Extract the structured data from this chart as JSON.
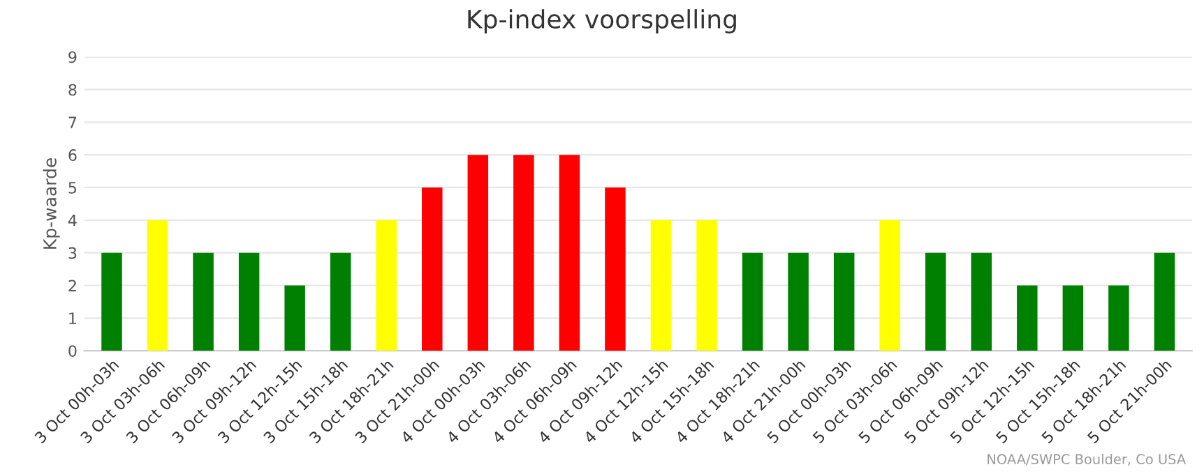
{
  "chart_data": {
    "type": "bar",
    "title": "Kp-index voorspelling",
    "ylabel": "Kp-waarde",
    "categories": [
      "3 Oct 00h-03h",
      "3 Oct 03h-06h",
      "3 Oct 06h-09h",
      "3 Oct 09h-12h",
      "3 Oct 12h-15h",
      "3 Oct 15h-18h",
      "3 Oct 18h-21h",
      "3 Oct 21h-00h",
      "4 Oct 00h-03h",
      "4 Oct 03h-06h",
      "4 Oct 06h-09h",
      "4 Oct 09h-12h",
      "4 Oct 12h-15h",
      "4 Oct 15h-18h",
      "4 Oct 18h-21h",
      "4 Oct 21h-00h",
      "5 Oct 00h-03h",
      "5 Oct 03h-06h",
      "5 Oct 06h-09h",
      "5 Oct 09h-12h",
      "5 Oct 12h-15h",
      "5 Oct 15h-18h",
      "5 Oct 18h-21h",
      "5 Oct 21h-00h"
    ],
    "values": [
      3,
      4,
      3,
      3,
      2,
      3,
      4,
      5,
      6,
      6,
      6,
      5,
      4,
      4,
      3,
      3,
      3,
      4,
      3,
      3,
      2,
      2,
      2,
      3
    ],
    "colors": [
      "#008000",
      "#ffff00",
      "#008000",
      "#008000",
      "#008000",
      "#008000",
      "#ffff00",
      "#ff0000",
      "#ff0000",
      "#ff0000",
      "#ff0000",
      "#ff0000",
      "#ffff00",
      "#ffff00",
      "#008000",
      "#008000",
      "#008000",
      "#ffff00",
      "#008000",
      "#008000",
      "#008000",
      "#008000",
      "#008000",
      "#008000"
    ],
    "ylim": [
      0,
      9
    ],
    "yticks": [
      0,
      1,
      2,
      3,
      4,
      5,
      6,
      7,
      8,
      9
    ],
    "grid": "y",
    "legend": false,
    "annotations": [
      "NOAA/SWPC Boulder, Co USA"
    ]
  }
}
